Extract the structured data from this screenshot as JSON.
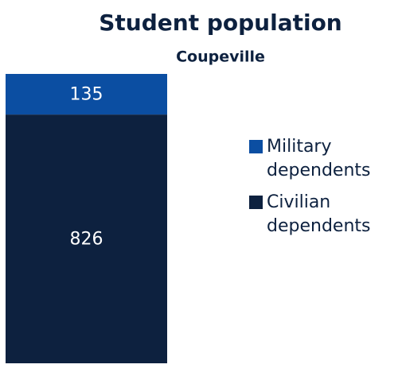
{
  "chart_data": {
    "type": "stacked-bar",
    "title": "Student population",
    "subtitle": "Coupeville",
    "categories": [
      "Coupeville"
    ],
    "series": [
      {
        "name": "Military dependents",
        "color": "#0b4ea2",
        "values": [
          135
        ]
      },
      {
        "name": "Civilian dependents",
        "color": "#0d213f",
        "values": [
          826
        ]
      }
    ],
    "legend": "right"
  }
}
